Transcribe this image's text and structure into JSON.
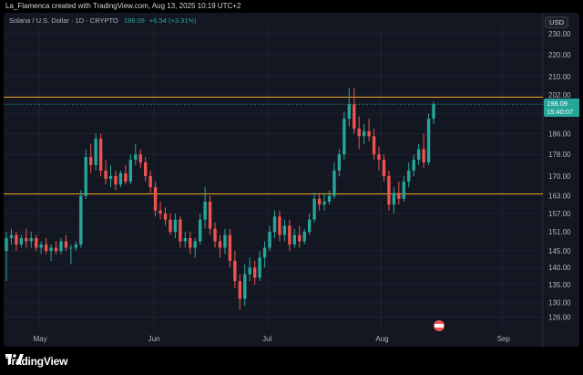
{
  "header": {
    "text": "La_Flamenca created with TradingView.com, Aug 13, 2025 10:19 UTC+2"
  },
  "legend": {
    "symbol": "Solana / U.S. Dollar · 1D · CRYPTO",
    "price": "198.09",
    "change": "+6.54 (+3.31%)"
  },
  "currency": "USD",
  "price_tag": {
    "price": "198.09",
    "countdown": "15:40:07"
  },
  "footer": {
    "brand": "TradingView"
  },
  "colors": {
    "up": "#26a69a",
    "down": "#ef5350",
    "level": "#f5a623",
    "bg": "#131722"
  },
  "chart_data": {
    "type": "candlestick",
    "y_axis": {
      "ticks": [
        126,
        130,
        135,
        140,
        145,
        151,
        157,
        163,
        170,
        178,
        186,
        194,
        202,
        210,
        220,
        230
      ],
      "ylim": [
        123,
        234
      ],
      "scale": "log"
    },
    "x_axis": {
      "ticks": [
        "May",
        "Jun",
        "Jul",
        "Aug",
        "Sep"
      ]
    },
    "horizontal_levels": [
      201,
      163.7
    ],
    "candles": [
      {
        "o": 145,
        "h": 151,
        "l": 136,
        "c": 149
      },
      {
        "o": 149,
        "h": 152,
        "l": 147,
        "c": 150
      },
      {
        "o": 150,
        "h": 151,
        "l": 145,
        "c": 147
      },
      {
        "o": 147,
        "h": 150,
        "l": 146,
        "c": 149
      },
      {
        "o": 149,
        "h": 152,
        "l": 146,
        "c": 148
      },
      {
        "o": 148,
        "h": 151,
        "l": 146,
        "c": 149
      },
      {
        "o": 149,
        "h": 150,
        "l": 145,
        "c": 146
      },
      {
        "o": 146,
        "h": 148,
        "l": 144,
        "c": 147
      },
      {
        "o": 147,
        "h": 149,
        "l": 144,
        "c": 145
      },
      {
        "o": 145,
        "h": 147,
        "l": 142,
        "c": 146
      },
      {
        "o": 146,
        "h": 148,
        "l": 144,
        "c": 145
      },
      {
        "o": 145,
        "h": 149,
        "l": 144,
        "c": 148
      },
      {
        "o": 148,
        "h": 150,
        "l": 145,
        "c": 146
      },
      {
        "o": 146,
        "h": 147,
        "l": 141,
        "c": 146
      },
      {
        "o": 146,
        "h": 148,
        "l": 145,
        "c": 147
      },
      {
        "o": 147,
        "h": 165,
        "l": 146,
        "c": 163
      },
      {
        "o": 163,
        "h": 180,
        "l": 162,
        "c": 177
      },
      {
        "o": 177,
        "h": 182,
        "l": 171,
        "c": 174
      },
      {
        "o": 174,
        "h": 186,
        "l": 172,
        "c": 184
      },
      {
        "o": 184,
        "h": 186,
        "l": 170,
        "c": 172
      },
      {
        "o": 172,
        "h": 176,
        "l": 167,
        "c": 169
      },
      {
        "o": 169,
        "h": 174,
        "l": 166,
        "c": 170
      },
      {
        "o": 170,
        "h": 172,
        "l": 165,
        "c": 167
      },
      {
        "o": 167,
        "h": 172,
        "l": 166,
        "c": 171
      },
      {
        "o": 171,
        "h": 174,
        "l": 167,
        "c": 168
      },
      {
        "o": 168,
        "h": 178,
        "l": 167,
        "c": 176
      },
      {
        "o": 176,
        "h": 182,
        "l": 174,
        "c": 178
      },
      {
        "o": 178,
        "h": 180,
        "l": 173,
        "c": 175
      },
      {
        "o": 175,
        "h": 177,
        "l": 168,
        "c": 170
      },
      {
        "o": 170,
        "h": 172,
        "l": 164,
        "c": 166
      },
      {
        "o": 166,
        "h": 168,
        "l": 156,
        "c": 158
      },
      {
        "o": 158,
        "h": 161,
        "l": 155,
        "c": 157
      },
      {
        "o": 157,
        "h": 159,
        "l": 153,
        "c": 155
      },
      {
        "o": 155,
        "h": 157,
        "l": 150,
        "c": 151
      },
      {
        "o": 151,
        "h": 157,
        "l": 149,
        "c": 155
      },
      {
        "o": 155,
        "h": 156,
        "l": 146,
        "c": 148
      },
      {
        "o": 148,
        "h": 151,
        "l": 146,
        "c": 149
      },
      {
        "o": 149,
        "h": 151,
        "l": 144,
        "c": 146
      },
      {
        "o": 146,
        "h": 149,
        "l": 143,
        "c": 148
      },
      {
        "o": 148,
        "h": 157,
        "l": 147,
        "c": 155
      },
      {
        "o": 155,
        "h": 166,
        "l": 152,
        "c": 161
      },
      {
        "o": 161,
        "h": 163,
        "l": 150,
        "c": 152
      },
      {
        "o": 152,
        "h": 154,
        "l": 146,
        "c": 148
      },
      {
        "o": 148,
        "h": 150,
        "l": 143,
        "c": 146
      },
      {
        "o": 146,
        "h": 152,
        "l": 144,
        "c": 150
      },
      {
        "o": 150,
        "h": 152,
        "l": 140,
        "c": 142
      },
      {
        "o": 142,
        "h": 145,
        "l": 134,
        "c": 136
      },
      {
        "o": 136,
        "h": 138,
        "l": 128,
        "c": 131
      },
      {
        "o": 131,
        "h": 141,
        "l": 129,
        "c": 138
      },
      {
        "o": 138,
        "h": 143,
        "l": 136,
        "c": 140
      },
      {
        "o": 140,
        "h": 142,
        "l": 135,
        "c": 137
      },
      {
        "o": 137,
        "h": 145,
        "l": 136,
        "c": 143
      },
      {
        "o": 143,
        "h": 148,
        "l": 140,
        "c": 146
      },
      {
        "o": 146,
        "h": 153,
        "l": 145,
        "c": 151
      },
      {
        "o": 151,
        "h": 158,
        "l": 149,
        "c": 156
      },
      {
        "o": 156,
        "h": 158,
        "l": 148,
        "c": 150
      },
      {
        "o": 150,
        "h": 155,
        "l": 148,
        "c": 153
      },
      {
        "o": 153,
        "h": 155,
        "l": 145,
        "c": 147
      },
      {
        "o": 147,
        "h": 152,
        "l": 146,
        "c": 150
      },
      {
        "o": 150,
        "h": 153,
        "l": 146,
        "c": 148
      },
      {
        "o": 148,
        "h": 152,
        "l": 147,
        "c": 151
      },
      {
        "o": 151,
        "h": 157,
        "l": 150,
        "c": 155
      },
      {
        "o": 155,
        "h": 164,
        "l": 154,
        "c": 162
      },
      {
        "o": 162,
        "h": 164,
        "l": 158,
        "c": 160
      },
      {
        "o": 160,
        "h": 164,
        "l": 158,
        "c": 161
      },
      {
        "o": 161,
        "h": 165,
        "l": 160,
        "c": 163
      },
      {
        "o": 163,
        "h": 175,
        "l": 162,
        "c": 172
      },
      {
        "o": 172,
        "h": 180,
        "l": 170,
        "c": 178
      },
      {
        "o": 178,
        "h": 195,
        "l": 176,
        "c": 192
      },
      {
        "o": 192,
        "h": 205,
        "l": 189,
        "c": 198
      },
      {
        "o": 198,
        "h": 205,
        "l": 186,
        "c": 188
      },
      {
        "o": 188,
        "h": 193,
        "l": 180,
        "c": 185
      },
      {
        "o": 185,
        "h": 190,
        "l": 182,
        "c": 187
      },
      {
        "o": 187,
        "h": 192,
        "l": 183,
        "c": 185
      },
      {
        "o": 185,
        "h": 188,
        "l": 176,
        "c": 178
      },
      {
        "o": 178,
        "h": 181,
        "l": 172,
        "c": 176
      },
      {
        "o": 176,
        "h": 178,
        "l": 168,
        "c": 170
      },
      {
        "o": 170,
        "h": 172,
        "l": 158,
        "c": 160
      },
      {
        "o": 160,
        "h": 166,
        "l": 157,
        "c": 164
      },
      {
        "o": 164,
        "h": 168,
        "l": 160,
        "c": 162
      },
      {
        "o": 162,
        "h": 170,
        "l": 161,
        "c": 168
      },
      {
        "o": 168,
        "h": 175,
        "l": 166,
        "c": 172
      },
      {
        "o": 172,
        "h": 178,
        "l": 170,
        "c": 176
      },
      {
        "o": 176,
        "h": 182,
        "l": 174,
        "c": 180
      },
      {
        "o": 180,
        "h": 186,
        "l": 173,
        "c": 175
      },
      {
        "o": 175,
        "h": 194,
        "l": 174,
        "c": 192
      },
      {
        "o": 192,
        "h": 199,
        "l": 190,
        "c": 198
      }
    ]
  }
}
